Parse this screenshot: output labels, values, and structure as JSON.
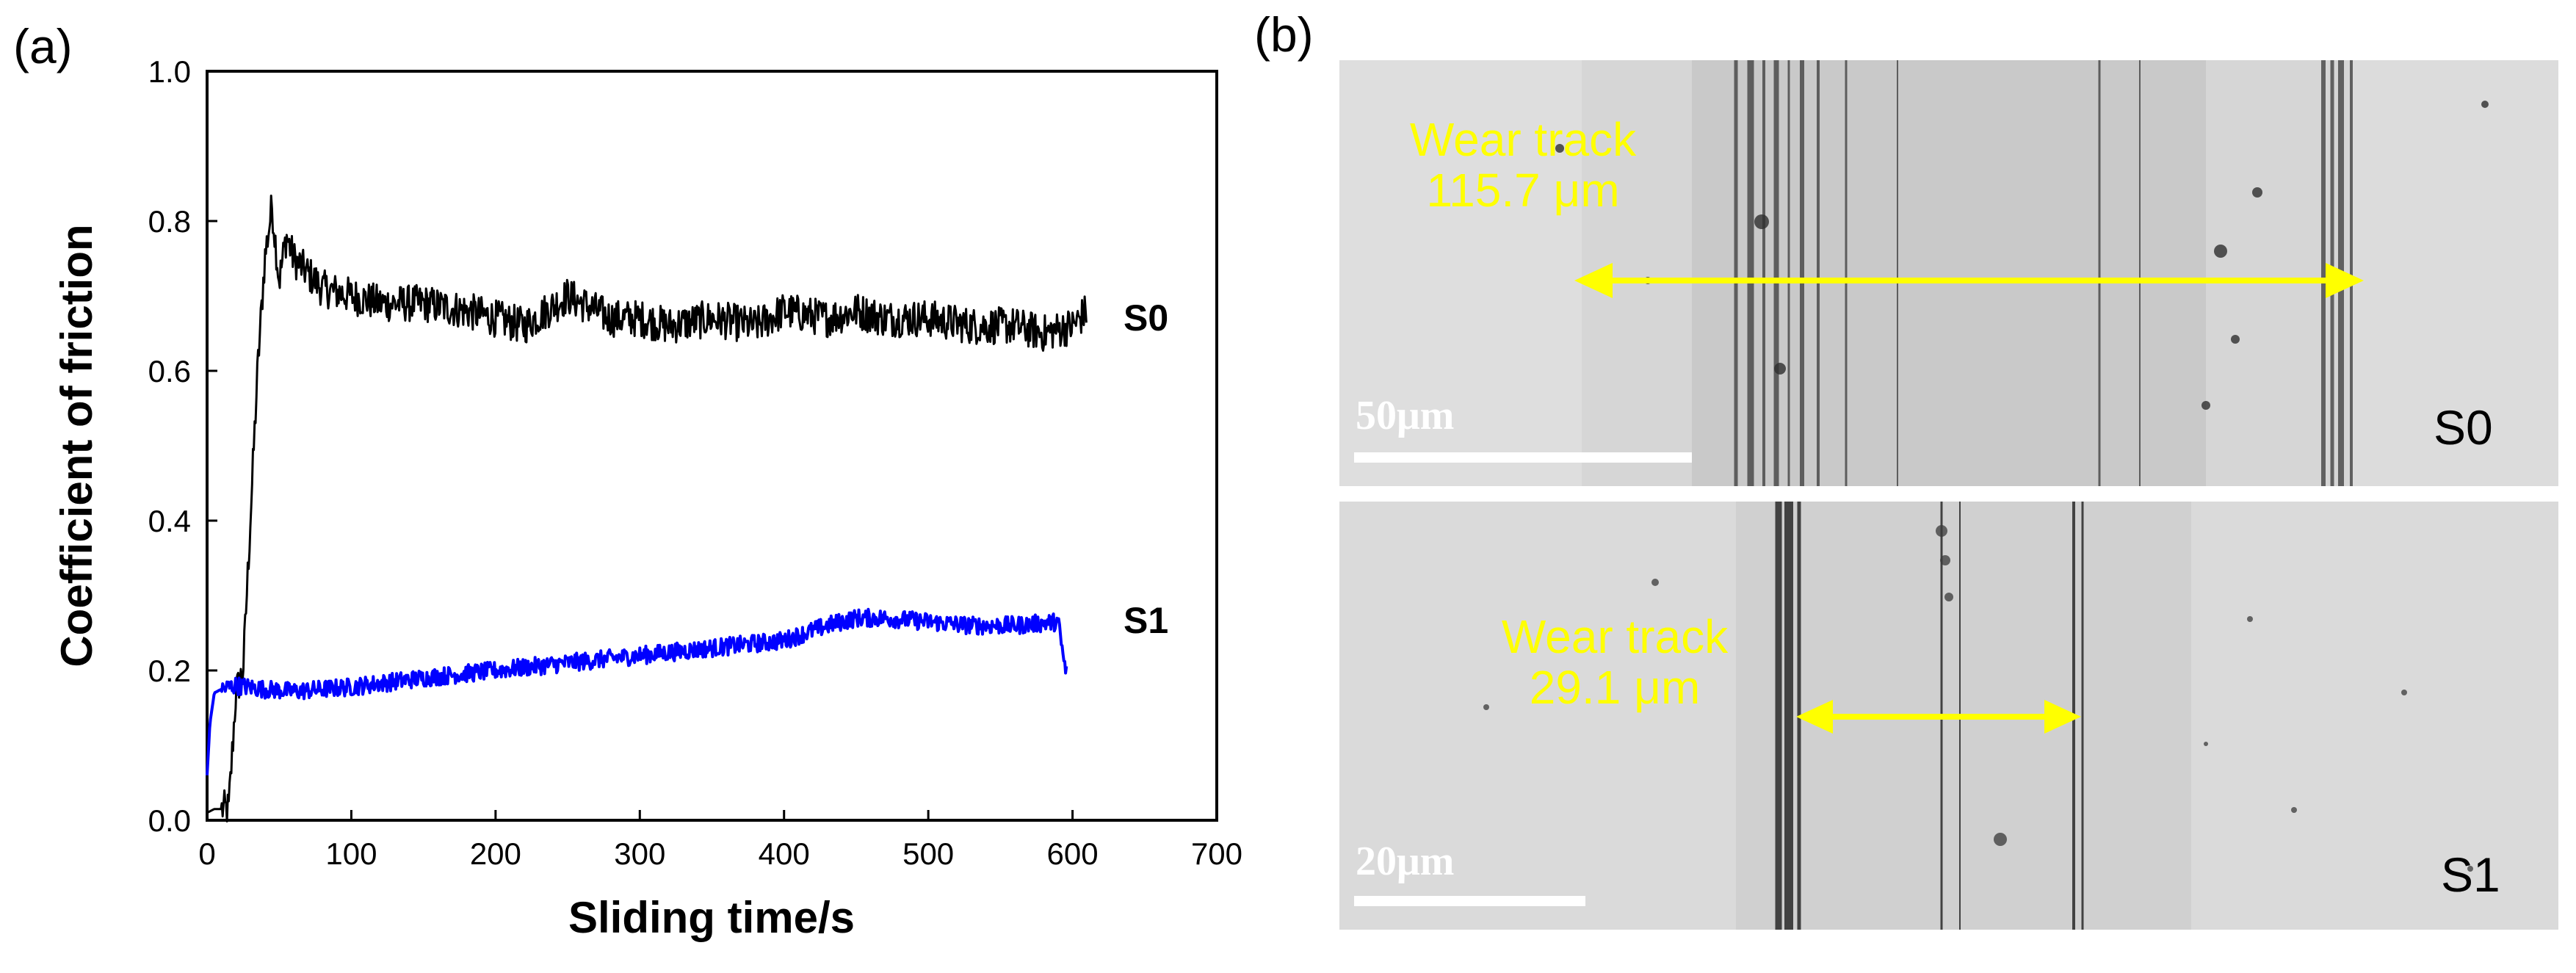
{
  "panel_labels": {
    "a": "(a)",
    "b": "(b)"
  },
  "colors": {
    "s0_line": "#000000",
    "s1_line": "#0000ff",
    "annotation": "#ffff00",
    "scale_bar": "#ffffff"
  },
  "chart_data": {
    "type": "line",
    "title": "",
    "xlabel": "Sliding time/s",
    "ylabel": "Coefficient of friction",
    "xlim": [
      0,
      700
    ],
    "ylim": [
      0.0,
      1.0
    ],
    "xticks": [
      0,
      100,
      200,
      300,
      400,
      500,
      600,
      700
    ],
    "yticks": [
      0.0,
      0.2,
      0.4,
      0.6,
      0.8,
      1.0
    ],
    "ytick_labels": [
      "0.0",
      "0.2",
      "0.4",
      "0.6",
      "0.8",
      "1.0"
    ],
    "grid": false,
    "legend_position": "series labels at right end of lines",
    "series": [
      {
        "name": "S0",
        "color": "#000000",
        "x": [
          0,
          5,
          15,
          20,
          25,
          30,
          35,
          40,
          45,
          50,
          55,
          60,
          70,
          80,
          100,
          120,
          150,
          180,
          200,
          220,
          250,
          280,
          300,
          320,
          350,
          380,
          400,
          430,
          450,
          470,
          500,
          530,
          560,
          580,
          600,
          610
        ],
        "values": [
          0.01,
          0.015,
          0.015,
          0.17,
          0.2,
          0.4,
          0.6,
          0.75,
          0.82,
          0.72,
          0.78,
          0.75,
          0.73,
          0.71,
          0.7,
          0.69,
          0.69,
          0.68,
          0.67,
          0.66,
          0.7,
          0.67,
          0.67,
          0.66,
          0.67,
          0.66,
          0.68,
          0.67,
          0.68,
          0.67,
          0.67,
          0.66,
          0.66,
          0.65,
          0.66,
          0.68
        ],
        "noise_amplitude": 0.025
      },
      {
        "name": "S1",
        "color": "#0000ff",
        "x": [
          0,
          2,
          5,
          10,
          20,
          40,
          60,
          80,
          100,
          150,
          200,
          250,
          300,
          350,
          400,
          430,
          450,
          470,
          500,
          530,
          560,
          590,
          595,
          596
        ],
        "values": [
          0.06,
          0.13,
          0.17,
          0.175,
          0.18,
          0.175,
          0.172,
          0.175,
          0.178,
          0.19,
          0.2,
          0.21,
          0.22,
          0.23,
          0.24,
          0.26,
          0.27,
          0.27,
          0.265,
          0.26,
          0.26,
          0.265,
          0.2,
          0.2
        ],
        "noise_amplitude": 0.012
      }
    ]
  },
  "micrographs": [
    {
      "sample": "S0",
      "wear_label": "Wear track",
      "wear_width": "115.7 μm",
      "scale_bar": "50μm"
    },
    {
      "sample": "S1",
      "wear_label": "Wear track",
      "wear_width": "29.1 μm",
      "scale_bar": "20μm"
    }
  ]
}
